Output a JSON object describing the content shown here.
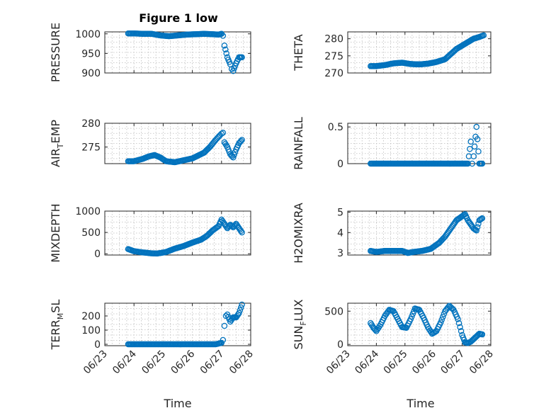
{
  "figure": {
    "title": "Figure 1 low",
    "marker_color": "#0072bd"
  },
  "chart_data": [
    {
      "type": "scatter",
      "ylabel": "PRESSURE",
      "ylim": [
        900,
        1005
      ],
      "yticks": [
        900,
        950,
        1000
      ],
      "xlim": [
        "06/23",
        "06/28"
      ],
      "xticks": [
        "06/23",
        "06/24",
        "06/25",
        "06/26",
        "06/27",
        "06/28"
      ],
      "grid": true,
      "x_day": [
        23.8,
        24.0,
        24.3,
        24.6,
        24.9,
        25.2,
        25.5,
        25.8,
        26.1,
        26.4,
        26.7,
        26.9,
        27.0,
        27.05,
        27.1,
        27.2,
        27.3,
        27.35,
        27.4,
        27.5,
        27.6,
        27.7
      ],
      "y": [
        1001,
        1001,
        1000,
        1000,
        996,
        994,
        996,
        998,
        999,
        1000,
        999,
        998,
        1000,
        995,
        970,
        940,
        922,
        910,
        905,
        925,
        940,
        940
      ]
    },
    {
      "type": "scatter",
      "ylabel": "THETA",
      "ylim": [
        270,
        282
      ],
      "yticks": [
        270,
        275,
        280
      ],
      "xlim": [
        "06/23",
        "06/28"
      ],
      "xticks": [
        "06/23",
        "06/24",
        "06/25",
        "06/26",
        "06/27",
        "06/28"
      ],
      "grid": true,
      "x_day": [
        23.8,
        24.0,
        24.3,
        24.6,
        24.9,
        25.2,
        25.5,
        25.8,
        26.1,
        26.4,
        26.6,
        26.8,
        27.0,
        27.2,
        27.4,
        27.6,
        27.75
      ],
      "y": [
        272,
        272,
        272.3,
        272.8,
        273,
        272.6,
        272.5,
        272.7,
        273.2,
        274,
        275.5,
        277,
        278,
        279,
        280,
        280.5,
        281
      ]
    },
    {
      "type": "scatter",
      "ylabel": "AIR_TEMP",
      "ylim": [
        271.5,
        280
      ],
      "yticks": [
        275,
        280
      ],
      "xlim": [
        "06/23",
        "06/28"
      ],
      "xticks": [
        "06/23",
        "06/24",
        "06/25",
        "06/26",
        "06/27",
        "06/28"
      ],
      "grid": true,
      "x_day": [
        23.8,
        24.0,
        24.3,
        24.5,
        24.7,
        24.9,
        25.1,
        25.4,
        25.7,
        26.0,
        26.2,
        26.4,
        26.6,
        26.8,
        26.95,
        27.0,
        27.05,
        27.1,
        27.2,
        27.3,
        27.4,
        27.5,
        27.6,
        27.7
      ],
      "y": [
        272,
        272,
        272.5,
        273,
        273.3,
        272.8,
        272,
        271.8,
        272.2,
        272.6,
        273.2,
        273.8,
        275,
        276.5,
        277.5,
        277.8,
        278,
        276,
        275,
        273.5,
        272.8,
        274.5,
        275.8,
        276.5
      ]
    },
    {
      "type": "scatter",
      "ylabel": "RAINFALL",
      "ylim": [
        0,
        0.55
      ],
      "yticks": [
        0,
        0.5
      ],
      "xlim": [
        "06/23",
        "06/28"
      ],
      "xticks": [
        "06/23",
        "06/24",
        "06/25",
        "06/26",
        "06/27",
        "06/28"
      ],
      "grid": true,
      "x_day": [
        23.8,
        24.1,
        24.4,
        24.7,
        25.0,
        25.3,
        25.6,
        25.9,
        26.2,
        26.5,
        26.8,
        27.0,
        27.2,
        27.3,
        27.35,
        27.4,
        27.5,
        27.6,
        27.7
      ],
      "y": [
        0,
        0,
        0,
        0,
        0,
        0,
        0,
        0,
        0,
        0,
        0,
        0,
        0,
        0.3,
        0,
        0.1,
        0.5,
        0,
        0
      ]
    },
    {
      "type": "scatter",
      "ylabel": "MIXDEPTH",
      "ylim": [
        -30,
        1000
      ],
      "yticks": [
        0,
        500,
        1000
      ],
      "xlim": [
        "06/23",
        "06/28"
      ],
      "xticks": [
        "06/23",
        "06/24",
        "06/25",
        "06/26",
        "06/27",
        "06/28"
      ],
      "grid": true,
      "x_day": [
        23.8,
        24.0,
        24.3,
        24.6,
        24.8,
        25.1,
        25.4,
        25.7,
        26.0,
        26.3,
        26.5,
        26.7,
        26.9,
        27.0,
        27.1,
        27.2,
        27.3,
        27.4,
        27.5,
        27.6,
        27.7
      ],
      "y": [
        110,
        60,
        30,
        10,
        5,
        40,
        120,
        180,
        260,
        330,
        420,
        550,
        650,
        800,
        700,
        600,
        680,
        620,
        700,
        600,
        500
      ]
    },
    {
      "type": "scatter",
      "ylabel": "H2OMIXRA",
      "ylim": [
        2.9,
        5.05
      ],
      "yticks": [
        3,
        4,
        5
      ],
      "xlim": [
        "06/23",
        "06/28"
      ],
      "xticks": [
        "06/23",
        "06/24",
        "06/25",
        "06/26",
        "06/27",
        "06/28"
      ],
      "grid": true,
      "x_day": [
        23.8,
        24.0,
        24.3,
        24.6,
        24.9,
        25.1,
        25.3,
        25.6,
        25.9,
        26.2,
        26.4,
        26.6,
        26.8,
        27.0,
        27.1,
        27.2,
        27.3,
        27.4,
        27.5,
        27.6,
        27.7
      ],
      "y": [
        3.1,
        3.05,
        3.1,
        3.1,
        3.1,
        3.0,
        3.05,
        3.1,
        3.2,
        3.5,
        3.8,
        4.2,
        4.6,
        4.8,
        4.9,
        4.6,
        4.4,
        4.2,
        4.1,
        4.6,
        4.7
      ]
    },
    {
      "type": "scatter",
      "ylabel": "TERR_MSL",
      "ylim": [
        -10,
        290
      ],
      "yticks": [
        0,
        100,
        200
      ],
      "xlim": [
        "06/23",
        "06/28"
      ],
      "xticks": [
        "06/23",
        "06/24",
        "06/25",
        "06/26",
        "06/27",
        "06/28"
      ],
      "grid": true,
      "x_day": [
        23.8,
        24.1,
        24.4,
        24.7,
        25.0,
        25.3,
        25.6,
        25.9,
        26.2,
        26.5,
        26.8,
        27.0,
        27.05,
        27.1,
        27.15,
        27.2,
        27.3,
        27.4,
        27.5,
        27.6,
        27.7
      ],
      "y": [
        0,
        0,
        0,
        0,
        0,
        0,
        0,
        0,
        0,
        0,
        0,
        10,
        30,
        130,
        200,
        210,
        160,
        190,
        190,
        220,
        280
      ]
    },
    {
      "type": "scatter",
      "ylabel": "SUN_FLUX",
      "ylim": [
        -20,
        620
      ],
      "yticks": [
        0,
        500
      ],
      "xlim": [
        "06/23",
        "06/28"
      ],
      "xticks": [
        "06/23",
        "06/24",
        "06/25",
        "06/26",
        "06/27",
        "06/28"
      ],
      "grid": true,
      "x_day": [
        23.8,
        23.9,
        24.0,
        24.15,
        24.3,
        24.45,
        24.6,
        24.75,
        24.9,
        25.05,
        25.2,
        25.35,
        25.5,
        25.65,
        25.8,
        25.95,
        26.1,
        26.25,
        26.4,
        26.55,
        26.7,
        26.85,
        27.0,
        27.1,
        27.2,
        27.3,
        27.4,
        27.5,
        27.6,
        27.7
      ],
      "y": [
        320,
        250,
        200,
        300,
        430,
        520,
        500,
        380,
        260,
        250,
        380,
        540,
        520,
        400,
        260,
        160,
        200,
        330,
        500,
        580,
        520,
        380,
        140,
        30,
        20,
        40,
        80,
        120,
        160,
        150
      ]
    }
  ],
  "xlabels": [
    "Time",
    "Time"
  ],
  "ylabel_parts": [
    [
      "PRESSURE",
      "",
      ""
    ],
    [
      "THETA",
      "",
      ""
    ],
    [
      "AIR",
      "T",
      "EMP"
    ],
    [
      "RAINFALL",
      "",
      ""
    ],
    [
      "MIXDEPTH",
      "",
      ""
    ],
    [
      "H2OMIXRA",
      "",
      ""
    ],
    [
      "TERR",
      "M",
      "SL"
    ],
    [
      "SUN",
      "F",
      "LUX"
    ]
  ]
}
